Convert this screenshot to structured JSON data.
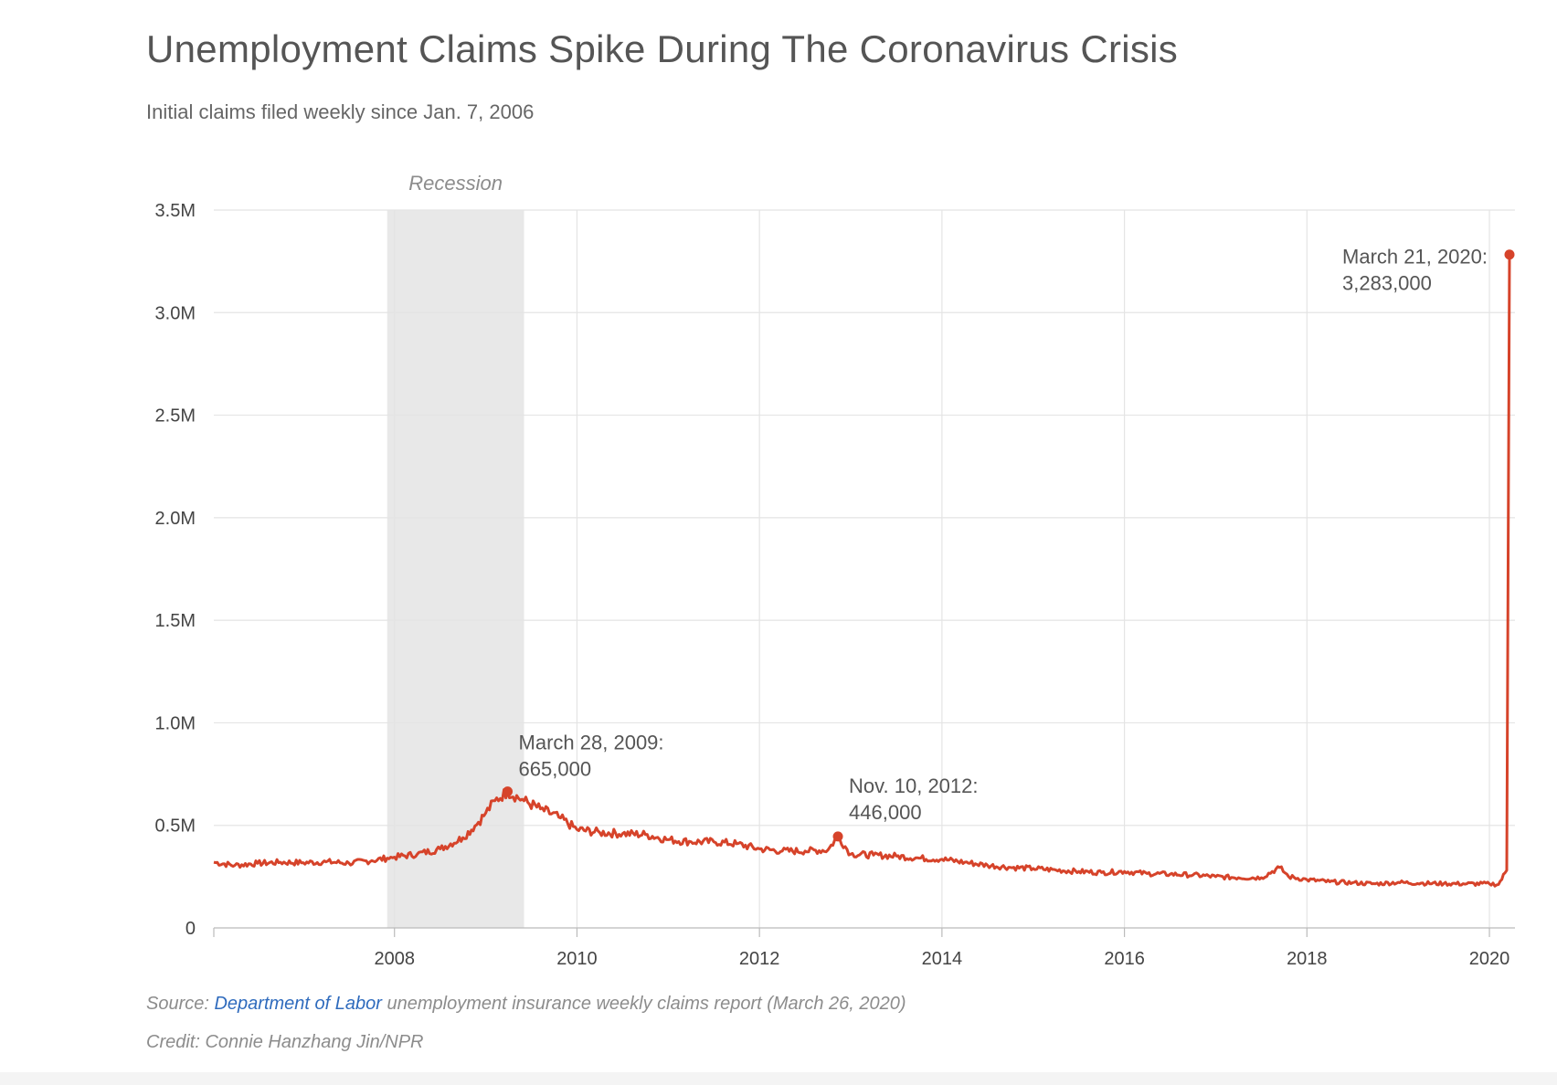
{
  "header": {
    "title": "Unemployment Claims Spike During The Coronavirus Crisis",
    "subtitle": "Initial claims filed weekly since Jan. 7, 2006"
  },
  "footer": {
    "source_prefix": "Source: ",
    "source_link": "Department of Labor",
    "source_suffix": " unemployment insurance weekly claims report (March 26, 2020)",
    "credit": "Credit: Connie Hanzhang Jin/NPR"
  },
  "colors": {
    "line": "#d6432a",
    "recession": "#e8e8e8",
    "grid": "#e4e4e4",
    "text": "#555555",
    "link": "#2f6bbd"
  },
  "chart_data": {
    "type": "line",
    "title": "Unemployment Claims Spike During The Coronavirus Crisis",
    "subtitle": "Initial claims filed weekly since Jan. 7, 2006",
    "xlim": [
      2006.02,
      2020.28
    ],
    "ylim": [
      0,
      3500000
    ],
    "x_ticks": [
      2008,
      2010,
      2012,
      2014,
      2016,
      2018,
      2020
    ],
    "x_tick_labels": [
      "2008",
      "2010",
      "2012",
      "2014",
      "2016",
      "2018",
      "2020"
    ],
    "y_ticks": [
      0,
      500000,
      1000000,
      1500000,
      2000000,
      2500000,
      3000000,
      3500000
    ],
    "y_tick_labels": [
      "0",
      "0.5M",
      "1.0M",
      "1.5M",
      "2.0M",
      "2.5M",
      "3.0M",
      "3.5M"
    ],
    "grid": true,
    "shaded_regions": [
      {
        "label": "Recession",
        "x_start": 2007.92,
        "x_end": 2009.42
      }
    ],
    "series": [
      {
        "points": [
          [
            2006.02,
            320000
          ],
          [
            2006.25,
            305000
          ],
          [
            2006.5,
            315000
          ],
          [
            2006.75,
            320000
          ],
          [
            2007.0,
            318000
          ],
          [
            2007.25,
            322000
          ],
          [
            2007.5,
            316000
          ],
          [
            2007.75,
            328000
          ],
          [
            2007.92,
            340000
          ],
          [
            2008.0,
            345000
          ],
          [
            2008.25,
            360000
          ],
          [
            2008.5,
            385000
          ],
          [
            2008.75,
            440000
          ],
          [
            2008.92,
            515000
          ],
          [
            2009.0,
            560000
          ],
          [
            2009.1,
            620000
          ],
          [
            2009.24,
            665000
          ],
          [
            2009.42,
            620000
          ],
          [
            2009.6,
            580000
          ],
          [
            2009.8,
            540000
          ],
          [
            2010.0,
            480000
          ],
          [
            2010.25,
            465000
          ],
          [
            2010.5,
            460000
          ],
          [
            2010.75,
            455000
          ],
          [
            2011.0,
            430000
          ],
          [
            2011.25,
            420000
          ],
          [
            2011.5,
            420000
          ],
          [
            2011.75,
            410000
          ],
          [
            2012.0,
            385000
          ],
          [
            2012.25,
            375000
          ],
          [
            2012.5,
            375000
          ],
          [
            2012.75,
            380000
          ],
          [
            2012.86,
            446000
          ],
          [
            2013.0,
            360000
          ],
          [
            2013.25,
            355000
          ],
          [
            2013.5,
            350000
          ],
          [
            2013.75,
            340000
          ],
          [
            2014.0,
            335000
          ],
          [
            2014.25,
            320000
          ],
          [
            2014.5,
            305000
          ],
          [
            2014.75,
            295000
          ],
          [
            2015.0,
            290000
          ],
          [
            2015.25,
            282000
          ],
          [
            2015.5,
            275000
          ],
          [
            2015.75,
            270000
          ],
          [
            2016.0,
            275000
          ],
          [
            2016.25,
            265000
          ],
          [
            2016.5,
            262000
          ],
          [
            2016.75,
            258000
          ],
          [
            2017.0,
            250000
          ],
          [
            2017.25,
            245000
          ],
          [
            2017.5,
            245000
          ],
          [
            2017.7,
            295000
          ],
          [
            2017.8,
            250000
          ],
          [
            2018.0,
            235000
          ],
          [
            2018.25,
            225000
          ],
          [
            2018.5,
            220000
          ],
          [
            2018.75,
            215000
          ],
          [
            2019.0,
            222000
          ],
          [
            2019.25,
            218000
          ],
          [
            2019.5,
            216000
          ],
          [
            2019.75,
            215000
          ],
          [
            2020.0,
            215000
          ],
          [
            2020.1,
            212000
          ],
          [
            2020.19,
            281000
          ],
          [
            2020.22,
            3283000
          ]
        ]
      }
    ],
    "annotations": [
      {
        "date": "March 28, 2009:",
        "value_label": "665,000",
        "x": 2009.24,
        "y": 665000
      },
      {
        "date": "Nov. 10, 2012:",
        "value_label": "446,000",
        "x": 2012.86,
        "y": 446000
      },
      {
        "date": "March 21, 2020:",
        "value_label": "3,283,000",
        "x": 2020.22,
        "y": 3283000
      }
    ]
  }
}
